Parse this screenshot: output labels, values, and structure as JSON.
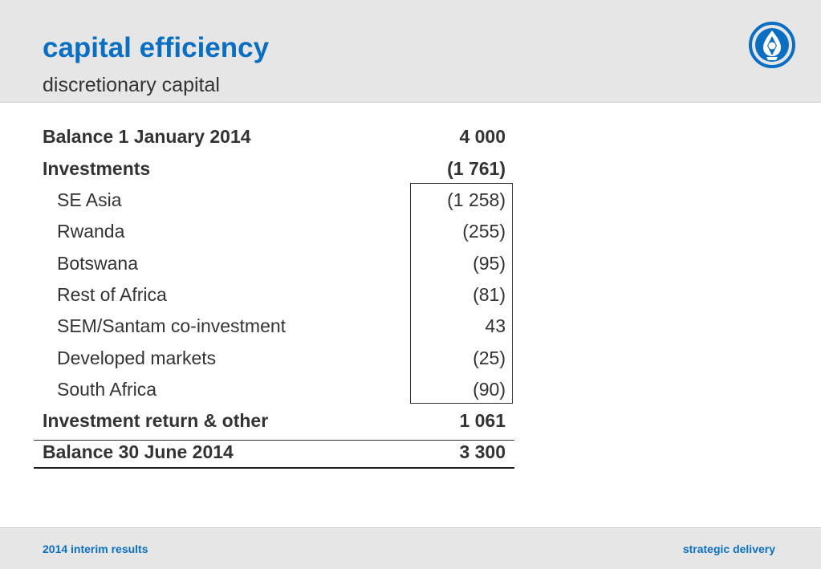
{
  "header": {
    "title": "capital efficiency",
    "subtitle": "discretionary capital",
    "logo_icon": "company-logo-icon"
  },
  "table": {
    "rows": [
      {
        "label": "Balance 1 January 2014",
        "value": "4 000",
        "style": "bold"
      },
      {
        "label": "Investments",
        "value": "(1 761)",
        "style": "bold"
      },
      {
        "label": "SE Asia",
        "value": "(1 258)",
        "style": "sub"
      },
      {
        "label": "Rwanda",
        "value": "(255)",
        "style": "sub"
      },
      {
        "label": "Botswana",
        "value": "(95)",
        "style": "sub"
      },
      {
        "label": "Rest of Africa",
        "value": "(81)",
        "style": "sub"
      },
      {
        "label": "SEM/Santam co-investment",
        "value": "43",
        "style": "sub"
      },
      {
        "label": "Developed markets",
        "value": "(25)",
        "style": "sub"
      },
      {
        "label": "South Africa",
        "value": "(90)",
        "style": "sub"
      },
      {
        "label": "Investment return & other",
        "value": "1 061",
        "style": "bold"
      },
      {
        "label": "Balance 30 June 2014",
        "value": "3 300",
        "style": "bold"
      }
    ]
  },
  "footer": {
    "left": "2014 interim results",
    "right": "strategic delivery"
  },
  "colors": {
    "accent": "#0a6fc2",
    "header_bg": "#e6e6e6",
    "text": "#333333"
  }
}
